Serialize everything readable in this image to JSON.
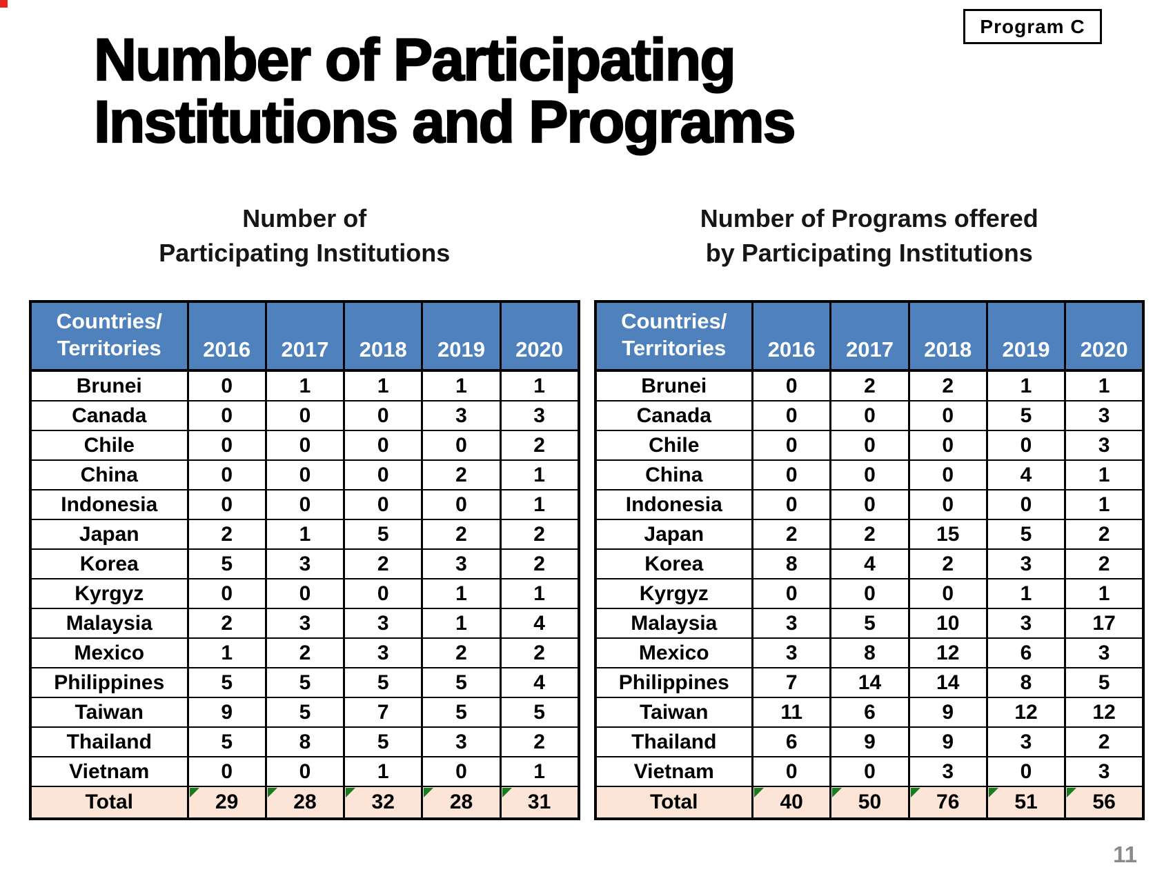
{
  "slide": {
    "badge_label": "Program C",
    "title_line1": "Number of Participating",
    "title_line2": "Institutions and Programs",
    "page_number": "11"
  },
  "colors": {
    "header_bg": "#4F81BD",
    "header_text": "#FFFFFF",
    "total_row_bg": "#FCE4D6",
    "flag_triangle_green": "#1B7B1F",
    "page_number_gray": "#8A8A8A",
    "corner_mark_red": "#E8241D"
  },
  "icons": {
    "total_cell_corner": "excel-green-corner-triangle"
  },
  "tables": [
    {
      "title_line1": "Number of",
      "title_line2": "Participating Institutions",
      "header": {
        "col0_line1": "Countries/",
        "col0_line2": "Territories",
        "years": [
          "2016",
          "2017",
          "2018",
          "2019",
          "2020"
        ]
      },
      "rows": [
        {
          "country": "Brunei",
          "values": [
            0,
            1,
            1,
            1,
            1
          ]
        },
        {
          "country": "Canada",
          "values": [
            0,
            0,
            0,
            3,
            3
          ]
        },
        {
          "country": "Chile",
          "values": [
            0,
            0,
            0,
            0,
            2
          ]
        },
        {
          "country": "China",
          "values": [
            0,
            0,
            0,
            2,
            1
          ]
        },
        {
          "country": "Indonesia",
          "values": [
            0,
            0,
            0,
            0,
            1
          ]
        },
        {
          "country": "Japan",
          "values": [
            2,
            1,
            5,
            2,
            2
          ]
        },
        {
          "country": "Korea",
          "values": [
            5,
            3,
            2,
            3,
            2
          ]
        },
        {
          "country": "Kyrgyz",
          "values": [
            0,
            0,
            0,
            1,
            1
          ]
        },
        {
          "country": "Malaysia",
          "values": [
            2,
            3,
            3,
            1,
            4
          ]
        },
        {
          "country": "Mexico",
          "values": [
            1,
            2,
            3,
            2,
            2
          ]
        },
        {
          "country": "Philippines",
          "values": [
            5,
            5,
            5,
            5,
            4
          ]
        },
        {
          "country": "Taiwan",
          "values": [
            9,
            5,
            7,
            5,
            5
          ]
        },
        {
          "country": "Thailand",
          "values": [
            5,
            8,
            5,
            3,
            2
          ]
        },
        {
          "country": "Vietnam",
          "values": [
            0,
            0,
            1,
            0,
            1
          ]
        }
      ],
      "total": {
        "label": "Total",
        "values": [
          29,
          28,
          32,
          28,
          31
        ]
      }
    },
    {
      "title_line1": "Number of Programs offered",
      "title_line2": "by Participating Institutions",
      "header": {
        "col0_line1": "Countries/",
        "col0_line2": "Territories",
        "years": [
          "2016",
          "2017",
          "2018",
          "2019",
          "2020"
        ]
      },
      "rows": [
        {
          "country": "Brunei",
          "values": [
            0,
            2,
            2,
            1,
            1
          ]
        },
        {
          "country": "Canada",
          "values": [
            0,
            0,
            0,
            5,
            3
          ]
        },
        {
          "country": "Chile",
          "values": [
            0,
            0,
            0,
            0,
            3
          ]
        },
        {
          "country": "China",
          "values": [
            0,
            0,
            0,
            4,
            1
          ]
        },
        {
          "country": "Indonesia",
          "values": [
            0,
            0,
            0,
            0,
            1
          ]
        },
        {
          "country": "Japan",
          "values": [
            2,
            2,
            15,
            5,
            2
          ]
        },
        {
          "country": "Korea",
          "values": [
            8,
            4,
            2,
            3,
            2
          ]
        },
        {
          "country": "Kyrgyz",
          "values": [
            0,
            0,
            0,
            1,
            1
          ]
        },
        {
          "country": "Malaysia",
          "values": [
            3,
            5,
            10,
            3,
            17
          ]
        },
        {
          "country": "Mexico",
          "values": [
            3,
            8,
            12,
            6,
            3
          ]
        },
        {
          "country": "Philippines",
          "values": [
            7,
            14,
            14,
            8,
            5
          ]
        },
        {
          "country": "Taiwan",
          "values": [
            11,
            6,
            9,
            12,
            12
          ]
        },
        {
          "country": "Thailand",
          "values": [
            6,
            9,
            9,
            3,
            2
          ]
        },
        {
          "country": "Vietnam",
          "values": [
            0,
            0,
            3,
            0,
            3
          ]
        }
      ],
      "total": {
        "label": "Total",
        "values": [
          40,
          50,
          76,
          51,
          56
        ]
      }
    }
  ]
}
